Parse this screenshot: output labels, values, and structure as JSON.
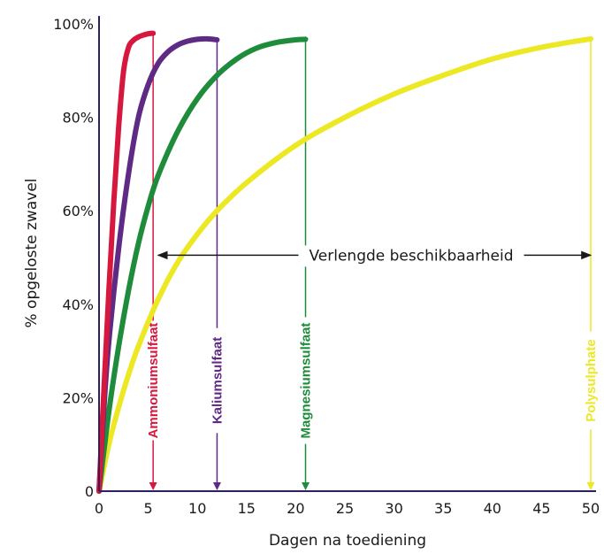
{
  "chart_data": {
    "type": "line",
    "xlabel": "Dagen na toediening",
    "ylabel": "% opgeloste zwavel",
    "xlim": [
      0,
      50
    ],
    "ylim": [
      0,
      100
    ],
    "x_ticks": [
      "0",
      "5",
      "10",
      "15",
      "20",
      "25",
      "30",
      "35",
      "40",
      "45",
      "50"
    ],
    "y_ticks": [
      "0",
      "20%",
      "40%",
      "60%",
      "80%",
      "100%"
    ],
    "grid": false,
    "annotation": {
      "text": "Verlengde beschikbaarheid",
      "from_x": 6,
      "to_x": 50,
      "y": 50.5
    },
    "series": [
      {
        "name": "Ammoniumsulfaat",
        "color": "#d6183e",
        "end_x": 5.5,
        "x": [
          0,
          0.5,
          1,
          1.5,
          2,
          2.5,
          3,
          3.5,
          4,
          4.5,
          5,
          5.5
        ],
        "y": [
          0,
          22,
          43,
          62,
          78,
          90,
          95,
          96.5,
          97.2,
          97.6,
          97.9,
          98.0
        ]
      },
      {
        "name": "Kaliumsulfaat",
        "color": "#5e2a84",
        "end_x": 12,
        "x": [
          0,
          0.5,
          1,
          2,
          3,
          4,
          5,
          6,
          7,
          8,
          9,
          10,
          11,
          12
        ],
        "y": [
          0,
          18,
          32,
          52,
          68,
          80,
          87,
          91.5,
          94,
          95.5,
          96.3,
          96.7,
          96.8,
          96.6
        ]
      },
      {
        "name": "Magnesiumsulfaat",
        "color": "#1e8c3a",
        "end_x": 21,
        "x": [
          0,
          1,
          2,
          3,
          4,
          5,
          6,
          8,
          10,
          12,
          14,
          16,
          18,
          20,
          21
        ],
        "y": [
          0,
          17,
          31,
          43,
          53,
          61,
          67.5,
          77,
          84,
          89,
          92.5,
          94.8,
          96,
          96.6,
          96.7
        ]
      },
      {
        "name": "Polysulphate",
        "color": "#ece824",
        "end_x": 50,
        "x": [
          0,
          1,
          2,
          3,
          4,
          6,
          8,
          10,
          12,
          15,
          20,
          25,
          30,
          35,
          40,
          45,
          50
        ],
        "y": [
          0,
          10,
          18,
          25,
          31,
          41,
          49,
          55,
          60,
          66,
          74,
          80,
          85,
          89,
          92.5,
          95,
          96.8
        ]
      }
    ]
  }
}
